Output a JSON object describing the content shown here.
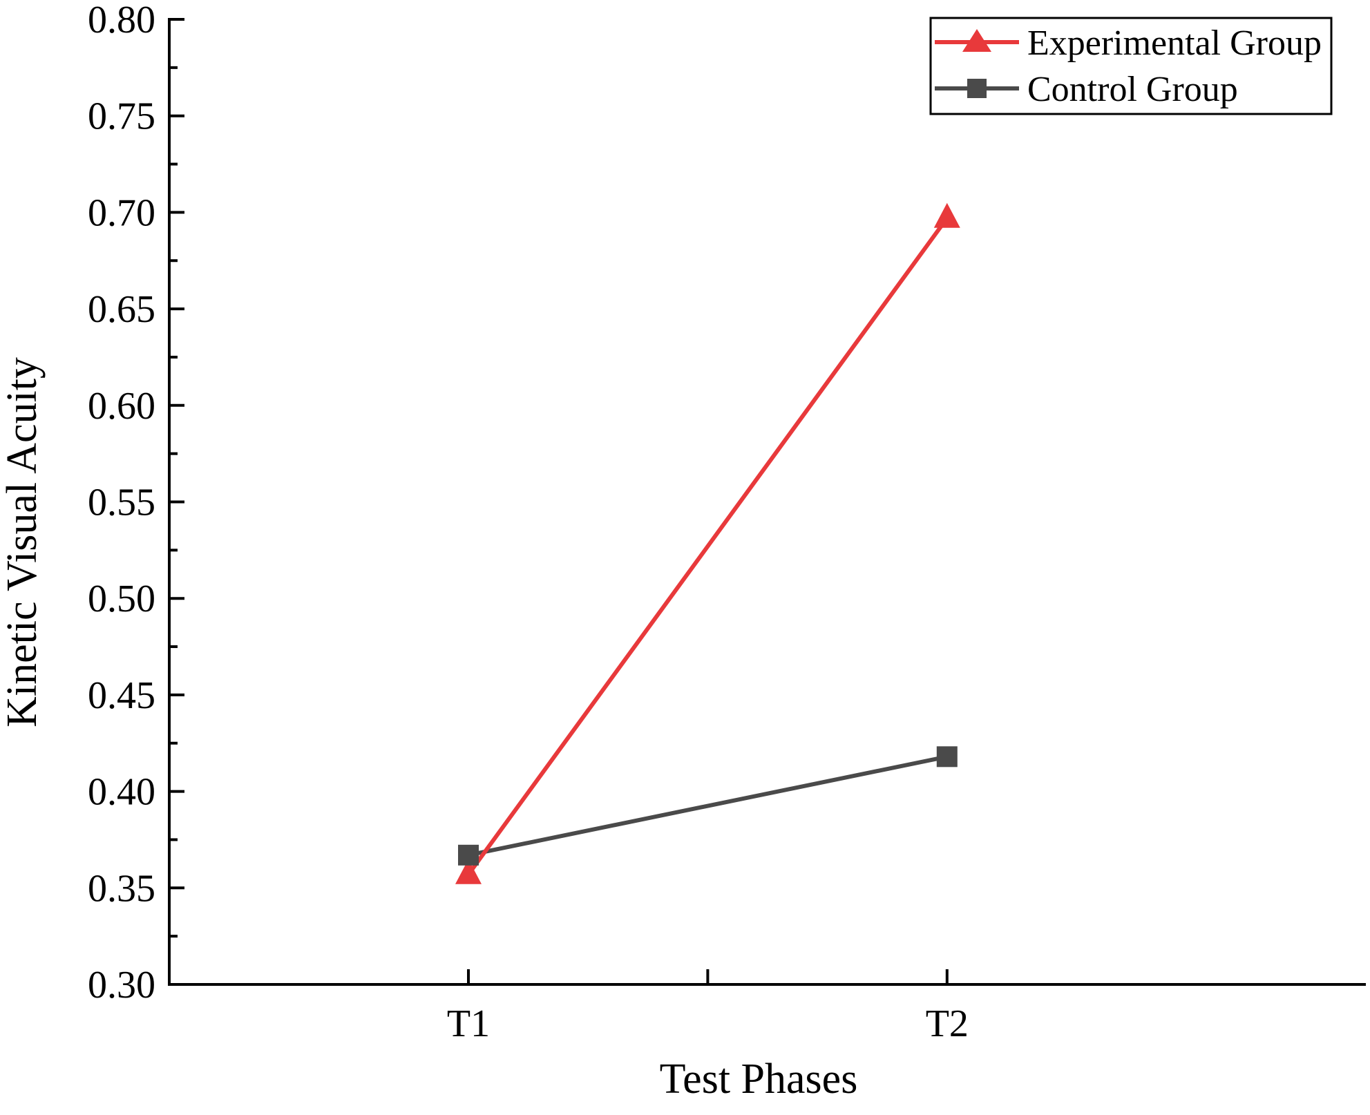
{
  "chart_data": {
    "type": "line",
    "title": "",
    "xlabel": "Test Phases",
    "ylabel": "Kinetic Visual Acuity",
    "categories": [
      "T1",
      "T2"
    ],
    "ylim": [
      0.3,
      0.8
    ],
    "yticks": [
      "0.30",
      "0.35",
      "0.40",
      "0.45",
      "0.50",
      "0.55",
      "0.60",
      "0.65",
      "0.70",
      "0.75",
      "0.80"
    ],
    "grid": false,
    "legend_position": "top-right",
    "series": [
      {
        "name": "Experimental Group",
        "values": [
          0.357,
          0.697
        ],
        "color": "#e8393b",
        "marker": "triangle"
      },
      {
        "name": "Control Group",
        "values": [
          0.367,
          0.418
        ],
        "color": "#4a4a4a",
        "marker": "square"
      }
    ]
  }
}
